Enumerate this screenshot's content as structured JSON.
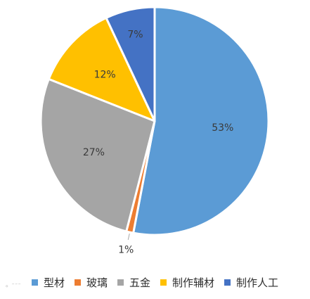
{
  "chart_data": {
    "type": "pie",
    "title": "",
    "slices": [
      {
        "label": "型材",
        "value": 53,
        "value_label": "53%",
        "color": "#5b9bd5"
      },
      {
        "label": "玻璃",
        "value": 1,
        "value_label": "1%",
        "color": "#ed7d31"
      },
      {
        "label": "五金",
        "value": 27,
        "value_label": "27%",
        "color": "#a5a5a5"
      },
      {
        "label": "制作辅材",
        "value": 12,
        "value_label": "12%",
        "color": "#ffc000"
      },
      {
        "label": "制作人工",
        "value": 7,
        "value_label": "7%",
        "color": "#4472c4"
      }
    ],
    "legend_position": "bottom"
  },
  "colors": {
    "label_text": "#3a3a3a",
    "slice_border": "#ffffff",
    "leader_line": "#a6a6a6"
  }
}
